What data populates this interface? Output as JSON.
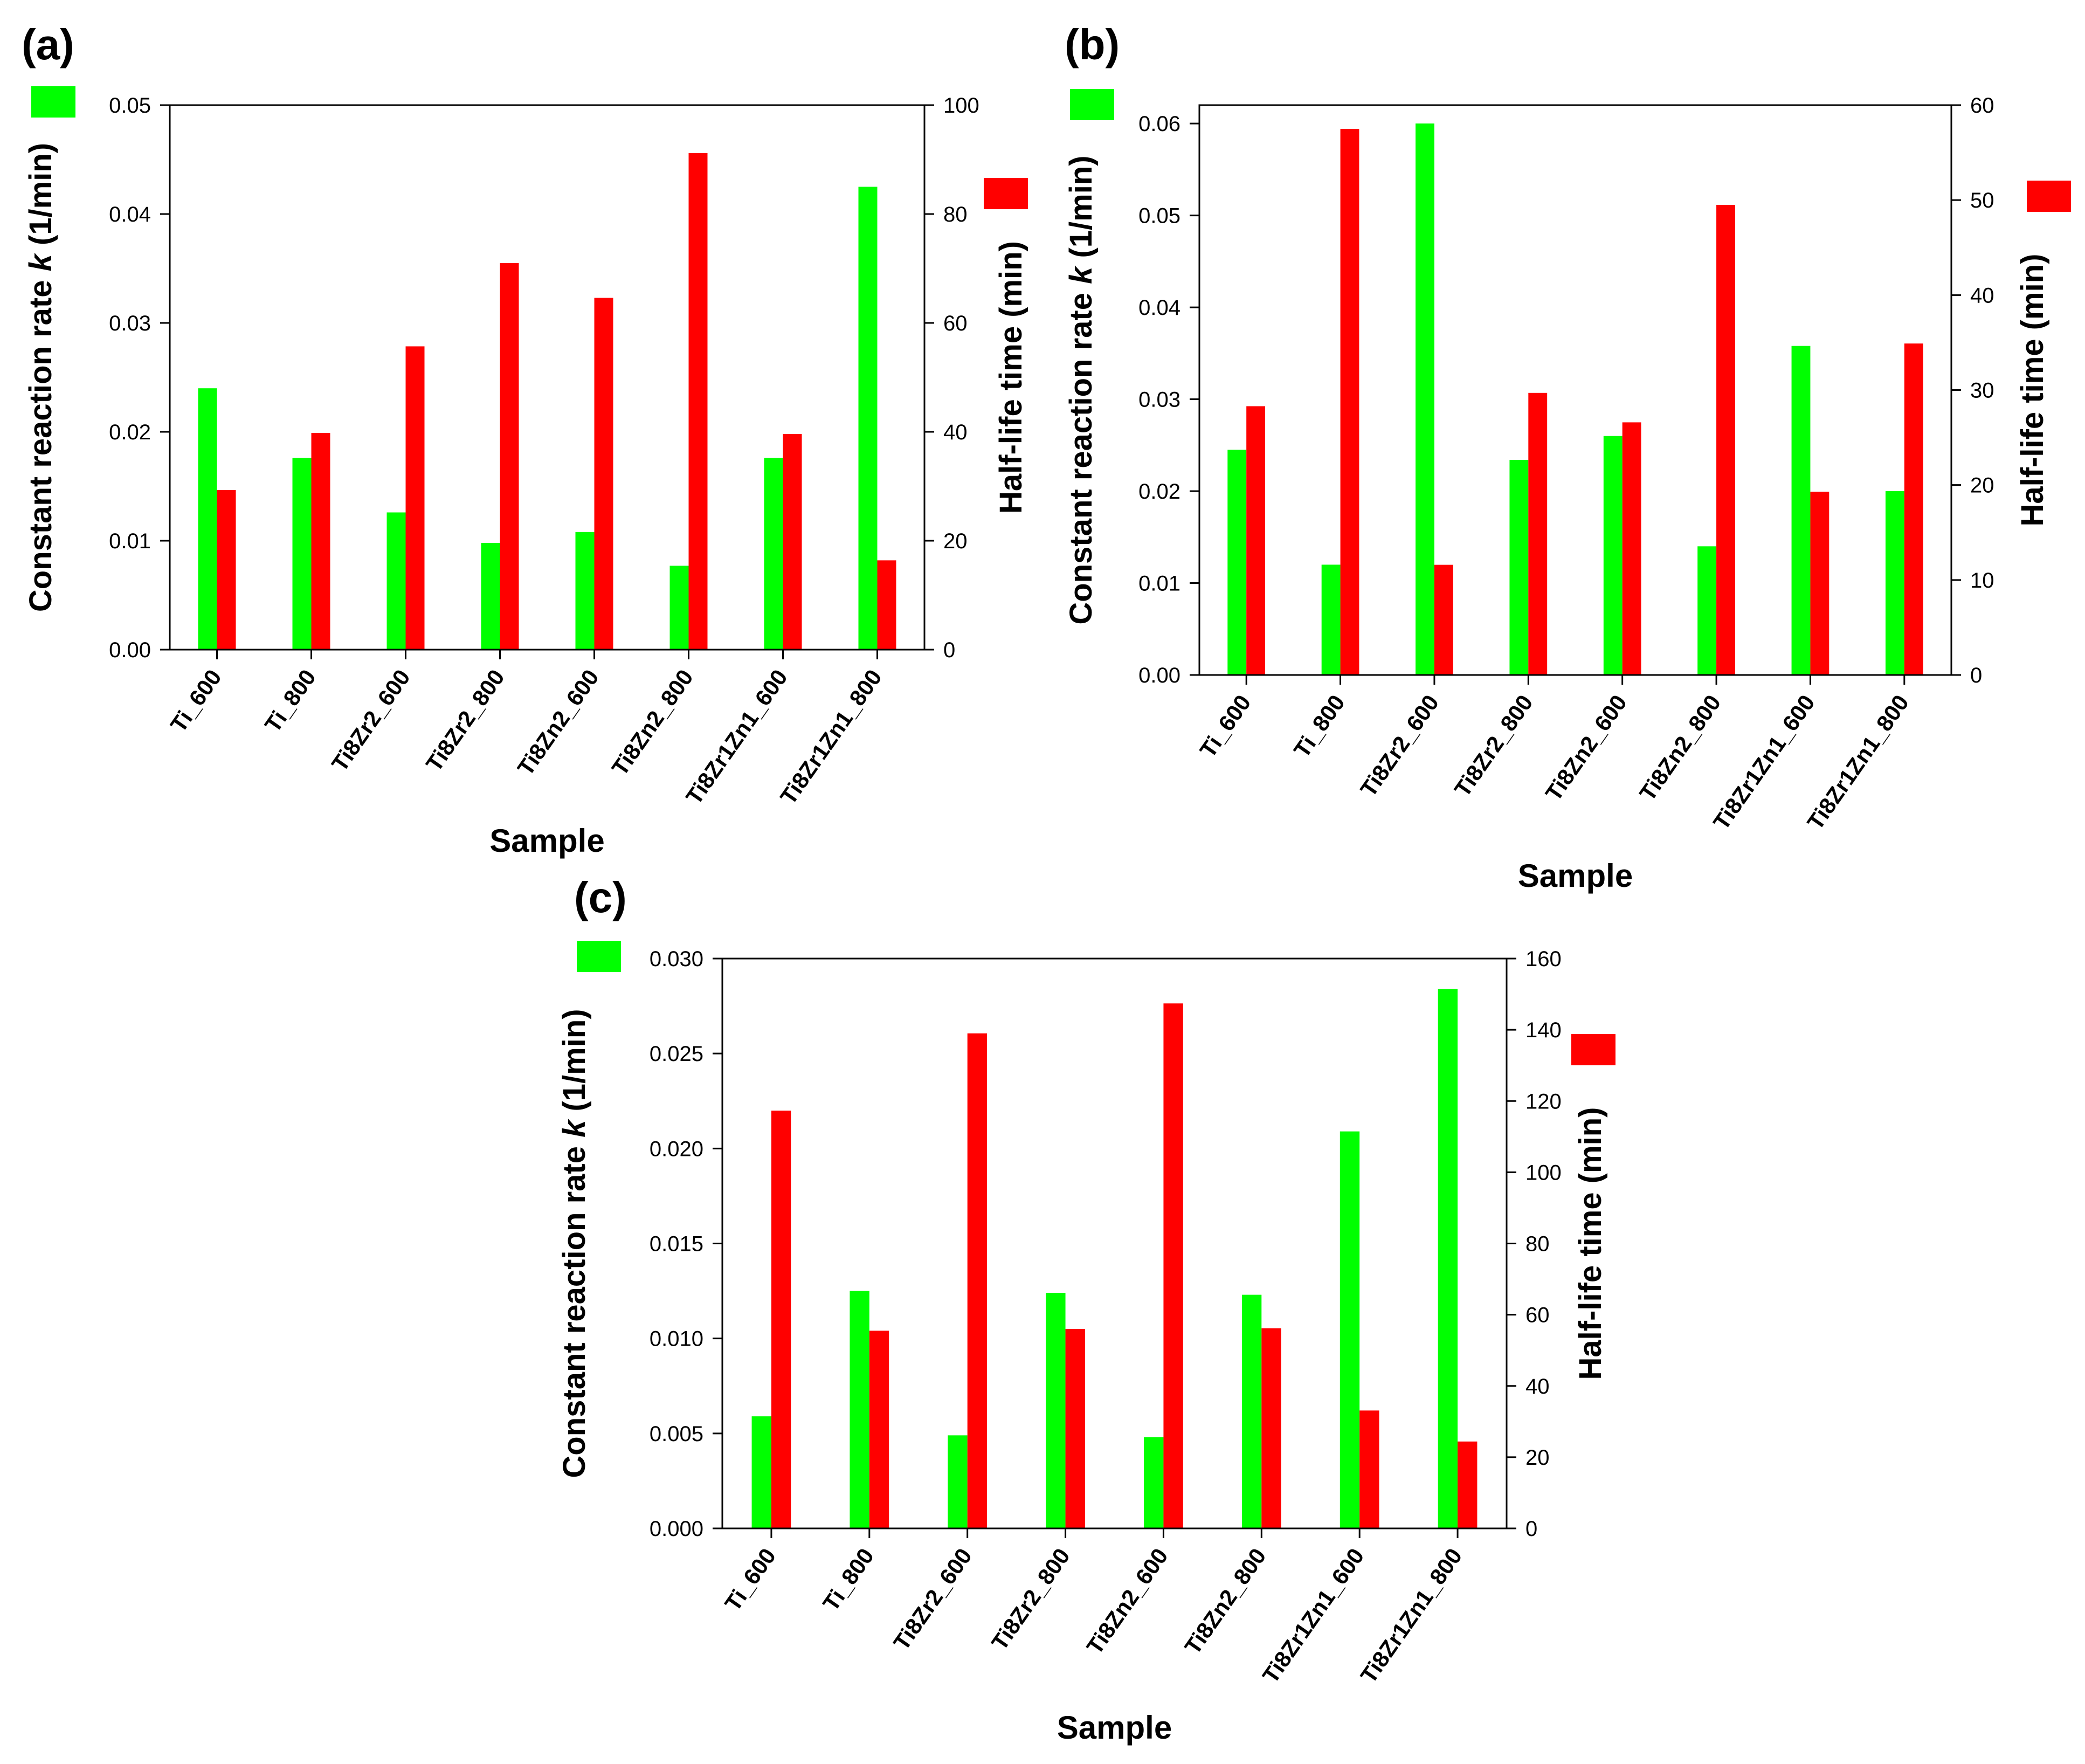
{
  "colors": {
    "k_series": "#00ff00",
    "halflife_series": "#ff0000",
    "axis": "#000000"
  },
  "chart_data": [
    {
      "panel": "(a)",
      "type": "bar",
      "xlabel": "Sample",
      "ylabel_left": [
        "Constant reaction rate ",
        "k",
        " (1/min)"
      ],
      "ylabel_right": "Half-life time (min)",
      "categories": [
        "Ti_600",
        "Ti_800",
        "Ti8Zr2_600",
        "Ti8Zr2_800",
        "Ti8Zn2_600",
        "Ti8Zn2_800",
        "Ti8Zr1Zn1_600",
        "Ti8Zr1Zn1_800"
      ],
      "series": [
        {
          "name": "k",
          "axis": "left",
          "values": [
            0.024,
            0.0176,
            0.0126,
            0.0098,
            0.0108,
            0.0077,
            0.0176,
            0.0425
          ]
        },
        {
          "name": "Half-life time",
          "axis": "right",
          "values": [
            29.3,
            39.8,
            55.7,
            71.0,
            64.6,
            91.2,
            39.6,
            16.4
          ]
        }
      ],
      "ylim_left": [
        0,
        0.05
      ],
      "ylim_right": [
        0,
        100
      ],
      "ticks_left": [
        "0.00",
        "0.01",
        "0.02",
        "0.03",
        "0.04",
        "0.05"
      ],
      "ticks_right": [
        "0",
        "20",
        "40",
        "60",
        "80",
        "100"
      ]
    },
    {
      "panel": "(b)",
      "type": "bar",
      "xlabel": "Sample",
      "ylabel_left": [
        "Constant reaction rate ",
        "k",
        " (1/min)"
      ],
      "ylabel_right": "Half-life time (min)",
      "categories": [
        "Ti_600",
        "Ti_800",
        "Ti8Zr2_600",
        "Ti8Zr2_800",
        "Ti8Zn2_600",
        "Ti8Zn2_800",
        "Ti8Zr1Zn1_600",
        "Ti8Zr1Zn1_800"
      ],
      "series": [
        {
          "name": "k",
          "axis": "left",
          "values": [
            0.0245,
            0.012,
            0.06,
            0.0234,
            0.026,
            0.014,
            0.0358,
            0.02
          ]
        },
        {
          "name": "Half-life time",
          "axis": "right",
          "values": [
            28.3,
            57.5,
            11.6,
            29.7,
            26.6,
            49.5,
            19.3,
            34.9
          ]
        }
      ],
      "ylim_left": [
        0,
        0.062
      ],
      "ylim_right": [
        0,
        60
      ],
      "ticks_left": [
        "0.00",
        "0.01",
        "0.02",
        "0.03",
        "0.04",
        "0.05",
        "0.06"
      ],
      "ticks_right": [
        "0",
        "10",
        "20",
        "30",
        "40",
        "50",
        "60"
      ]
    },
    {
      "panel": "(c)",
      "type": "bar",
      "xlabel": "Sample",
      "ylabel_left": [
        "Constant reaction rate ",
        "k",
        " (1/min)"
      ],
      "ylabel_right": "Half-life time (min)",
      "categories": [
        "Ti_600",
        "Ti_800",
        "Ti8Zr2_600",
        "Ti8Zr2_800",
        "Ti8Zn2_600",
        "Ti8Zn2_800",
        "Ti8Zr1Zn1_600",
        "Ti8Zr1Zn1_800"
      ],
      "series": [
        {
          "name": "k",
          "axis": "left",
          "values": [
            0.0059,
            0.0125,
            0.0049,
            0.0124,
            0.0048,
            0.0123,
            0.0209,
            0.0284
          ]
        },
        {
          "name": "Half-life time",
          "axis": "right",
          "values": [
            117.3,
            55.5,
            139.0,
            56.0,
            147.4,
            56.2,
            33.1,
            24.4
          ]
        }
      ],
      "ylim_left": [
        0,
        0.03
      ],
      "ylim_right": [
        0,
        160
      ],
      "ticks_left": [
        "0.000",
        "0.005",
        "0.010",
        "0.015",
        "0.020",
        "0.025",
        "0.030"
      ],
      "ticks_right": [
        "0",
        "20",
        "40",
        "60",
        "80",
        "100",
        "120",
        "140",
        "160"
      ]
    }
  ]
}
